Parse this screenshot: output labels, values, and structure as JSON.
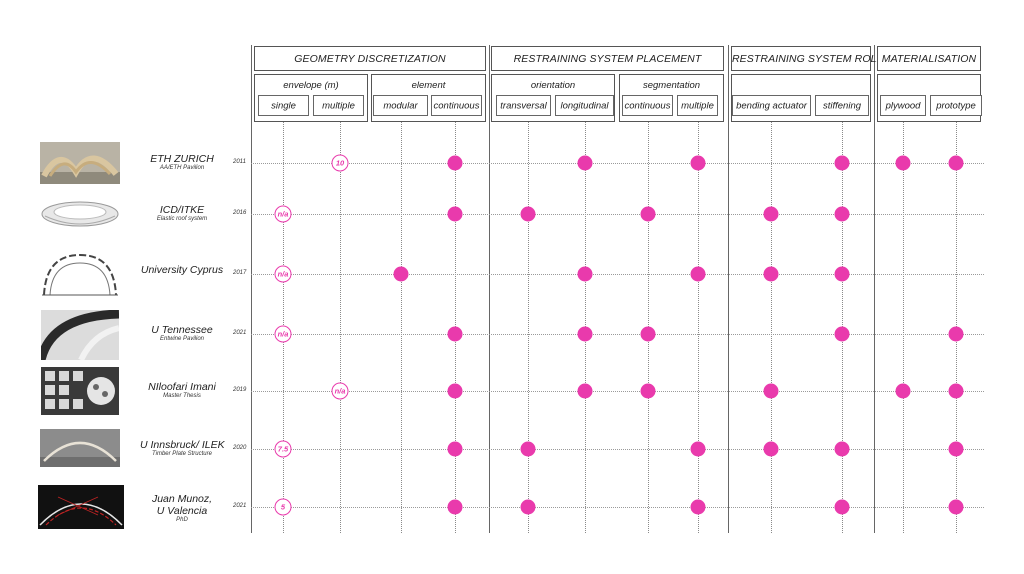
{
  "categories": [
    {
      "label": "GEOMETRY DISCRETIZATION"
    },
    {
      "label": "RESTRAINING SYSTEM PLACEMENT"
    },
    {
      "label": "RESTRAINING SYSTEM ROLE"
    },
    {
      "label": "MATERIALISATION"
    }
  ],
  "subgroups": [
    {
      "label": "envelope (m)"
    },
    {
      "label": "element"
    },
    {
      "label": "orientation"
    },
    {
      "label": "segmentation"
    }
  ],
  "columns": [
    {
      "label": "single"
    },
    {
      "label": "multiple"
    },
    {
      "label": "modular"
    },
    {
      "label": "continuous"
    },
    {
      "label": "transversal"
    },
    {
      "label": "longitudinal"
    },
    {
      "label": "continuous"
    },
    {
      "label": "multiple"
    },
    {
      "label": "bending actuator"
    },
    {
      "label": "stiffening"
    },
    {
      "label": "plywood"
    },
    {
      "label": "prototype"
    }
  ],
  "projects": [
    {
      "name_lines": [
        "ETH ZURICH"
      ],
      "subtitle": "AA/ETH Pavilion",
      "year": "2011",
      "thumbnail": "arch-pavilion-photo",
      "marks": [
        null,
        "10",
        null,
        true,
        null,
        true,
        null,
        true,
        null,
        true,
        true,
        true
      ]
    },
    {
      "name_lines": [
        "ICD/ITKE"
      ],
      "subtitle": "Elastic roof system",
      "year": "2016",
      "thumbnail": "white-shell-render",
      "marks": [
        "n/a",
        null,
        null,
        true,
        true,
        null,
        true,
        null,
        true,
        true,
        null,
        null
      ]
    },
    {
      "name_lines": [
        "University Cyprus"
      ],
      "subtitle": "",
      "year": "2017",
      "thumbnail": "segmented-arch-drawing",
      "marks": [
        "n/a",
        null,
        true,
        null,
        null,
        true,
        null,
        true,
        true,
        true,
        null,
        null
      ]
    },
    {
      "name_lines": [
        "U Tennessee"
      ],
      "subtitle": "Entwine Pavilion",
      "year": "2021",
      "thumbnail": "curved-strip-photo",
      "marks": [
        "n/a",
        null,
        null,
        true,
        null,
        true,
        true,
        null,
        null,
        true,
        null,
        true
      ]
    },
    {
      "name_lines": [
        "NIloofari Imani"
      ],
      "subtitle": "Master Thesis",
      "year": "2019",
      "thumbnail": "model-grid-photo",
      "marks": [
        null,
        "n/a",
        null,
        true,
        null,
        true,
        true,
        null,
        true,
        null,
        true,
        true
      ]
    },
    {
      "name_lines": [
        "U Innsbruck/ ILEK"
      ],
      "subtitle": "Timber Plate Structure",
      "year": "2020",
      "thumbnail": "timber-arch-photo",
      "marks": [
        "7.5",
        null,
        null,
        true,
        true,
        null,
        null,
        true,
        true,
        true,
        null,
        true
      ]
    },
    {
      "name_lines": [
        "Juan Munoz,",
        "U Valencia"
      ],
      "subtitle": "PhD",
      "year": "2021",
      "thumbnail": "dark-arch-render",
      "marks": [
        "5",
        null,
        null,
        true,
        true,
        null,
        null,
        true,
        null,
        true,
        null,
        true
      ]
    }
  ],
  "colors": {
    "accent": "#e93aac",
    "line": "#666666",
    "grid": "#9a9a9a"
  }
}
